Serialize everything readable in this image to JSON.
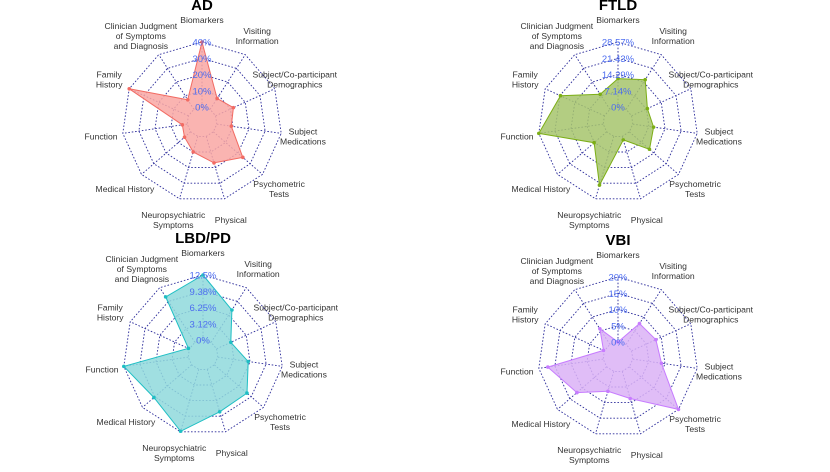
{
  "chart_data": [
    {
      "type": "radar",
      "title": "AD",
      "axes": [
        "Biomarkers",
        "Visiting Information",
        "Subject/Co-participant Demographics",
        "Subject Medications",
        "Psychometric Tests",
        "Physical",
        "Neuropsychiatric Symptoms",
        "Medical History",
        "Function",
        "Family History",
        "Clinician Judgment of Symptoms and Diagnosis"
      ],
      "tick_labels": [
        "0%",
        "10%",
        "20%",
        "30%",
        "40%"
      ],
      "range": [
        0,
        40
      ],
      "values": [
        40,
        8,
        12,
        9,
        24,
        17,
        10,
        5,
        3,
        40,
        7
      ],
      "fill": "#f9a7a3",
      "stroke": "#f26b63"
    },
    {
      "type": "radar",
      "title": "FTLD",
      "axes": [
        "Biomarkers",
        "Visiting Information",
        "Subject/Co-participant Demographics",
        "Subject Medications",
        "Psychometric Tests",
        "Physical",
        "Neuropsychiatric Symptoms",
        "Medical History",
        "Function",
        "Family History",
        "Clinician Judgment of Symptoms and Diagnosis"
      ],
      "tick_labels": [
        "0%",
        "7.14%",
        "14.29%",
        "21.43%",
        "28.57%"
      ],
      "range": [
        0,
        28.57
      ],
      "values": [
        12.5,
        15.5,
        7.6,
        9.2,
        11.7,
        1.6,
        22.3,
        7.3,
        28.57,
        21.2,
        7.9
      ],
      "fill": "#a6c46c",
      "stroke": "#7cae16"
    },
    {
      "type": "radar",
      "title": "LBD/PD",
      "axes": [
        "Biomarkers",
        "Visiting Information",
        "Subject/Co-participant Demographics",
        "Subject Medications",
        "Psychometric Tests",
        "Physical",
        "Neuropsychiatric Symptoms",
        "Medical History",
        "Function",
        "Family History",
        "Clinician Judgment of Symptoms and Diagnosis"
      ],
      "tick_labels": [
        "0%",
        "3.12%",
        "6.25%",
        "9.38%",
        "12.5%"
      ],
      "range": [
        0,
        12.5
      ],
      "values": [
        12.5,
        7.4,
        3.0,
        5.9,
        8.3,
        8.5,
        12.4,
        9.6,
        12.5,
        0.2,
        10.4
      ],
      "fill": "#8fd9dc",
      "stroke": "#1fbfc4"
    },
    {
      "type": "radar",
      "title": "VBI",
      "axes": [
        "Biomarkers",
        "Visiting Information",
        "Subject/Co-participant Demographics",
        "Subject Medications",
        "Psychometric Tests",
        "Physical",
        "Neuropsychiatric Symptoms",
        "Medical History",
        "Function",
        "Family History",
        "Clinician Judgment of Symptoms and Diagnosis"
      ],
      "tick_labels": [
        "0%",
        "5%",
        "10%",
        "15%",
        "20%"
      ],
      "range": [
        0,
        20
      ],
      "values": [
        0,
        7.6,
        8.2,
        8.9,
        20,
        8.7,
        6.4,
        12.1,
        17.2,
        0.3,
        5.7
      ],
      "fill": "#dab2f6",
      "stroke": "#c77cff"
    }
  ],
  "axis_label_lines": [
    [
      "Biomarkers"
    ],
    [
      "Visiting",
      "Information"
    ],
    [
      "Subject/Co-participant",
      "Demographics"
    ],
    [
      "Subject",
      "Medications"
    ],
    [
      "Psychometric",
      "Tests"
    ],
    [
      "Physical"
    ],
    [
      "Neuropsychiatric",
      "Symptoms"
    ],
    [
      "Medical History"
    ],
    [
      "Function"
    ],
    [
      "Family",
      "History"
    ],
    [
      "Clinician Judgment",
      "of Symptoms",
      "and Diagnosis"
    ]
  ]
}
